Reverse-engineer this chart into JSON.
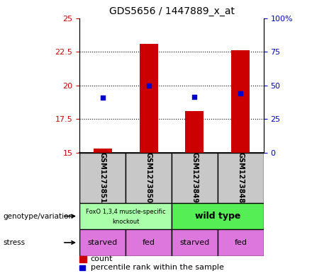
{
  "title": "GDS5656 / 1447889_x_at",
  "samples": [
    "GSM1273851",
    "GSM1273850",
    "GSM1273849",
    "GSM1273848"
  ],
  "count_values": [
    15.3,
    23.1,
    18.1,
    22.6
  ],
  "percentile_values": [
    19.1,
    20.0,
    19.15,
    19.4
  ],
  "ylim_left": [
    15,
    25
  ],
  "ylim_right": [
    0,
    100
  ],
  "yticks_left": [
    15,
    17.5,
    20,
    22.5,
    25
  ],
  "yticks_right": [
    0,
    25,
    50,
    75,
    100
  ],
  "ytick_labels_left": [
    "15",
    "17.5",
    "20",
    "22.5",
    "25"
  ],
  "ytick_labels_right": [
    "0",
    "25",
    "50",
    "75",
    "100%"
  ],
  "bar_color": "#cc0000",
  "dot_color": "#0000cc",
  "bar_width": 0.4,
  "genotype_line1": "FoxO 1,3,4 muscle-specific",
  "genotype_line2": "knockout",
  "genotype_label2": "wild type",
  "genotype_colors": [
    "#aaffaa",
    "#55ee55"
  ],
  "stress_labels": [
    "starved",
    "fed",
    "starved",
    "fed"
  ],
  "stress_color": "#dd77dd",
  "label_count": "count",
  "label_percentile": "percentile rank within the sample",
  "background_color": "white",
  "sample_box_color": "#c8c8c8",
  "left_labels": [
    "genotype/variation",
    "stress"
  ]
}
